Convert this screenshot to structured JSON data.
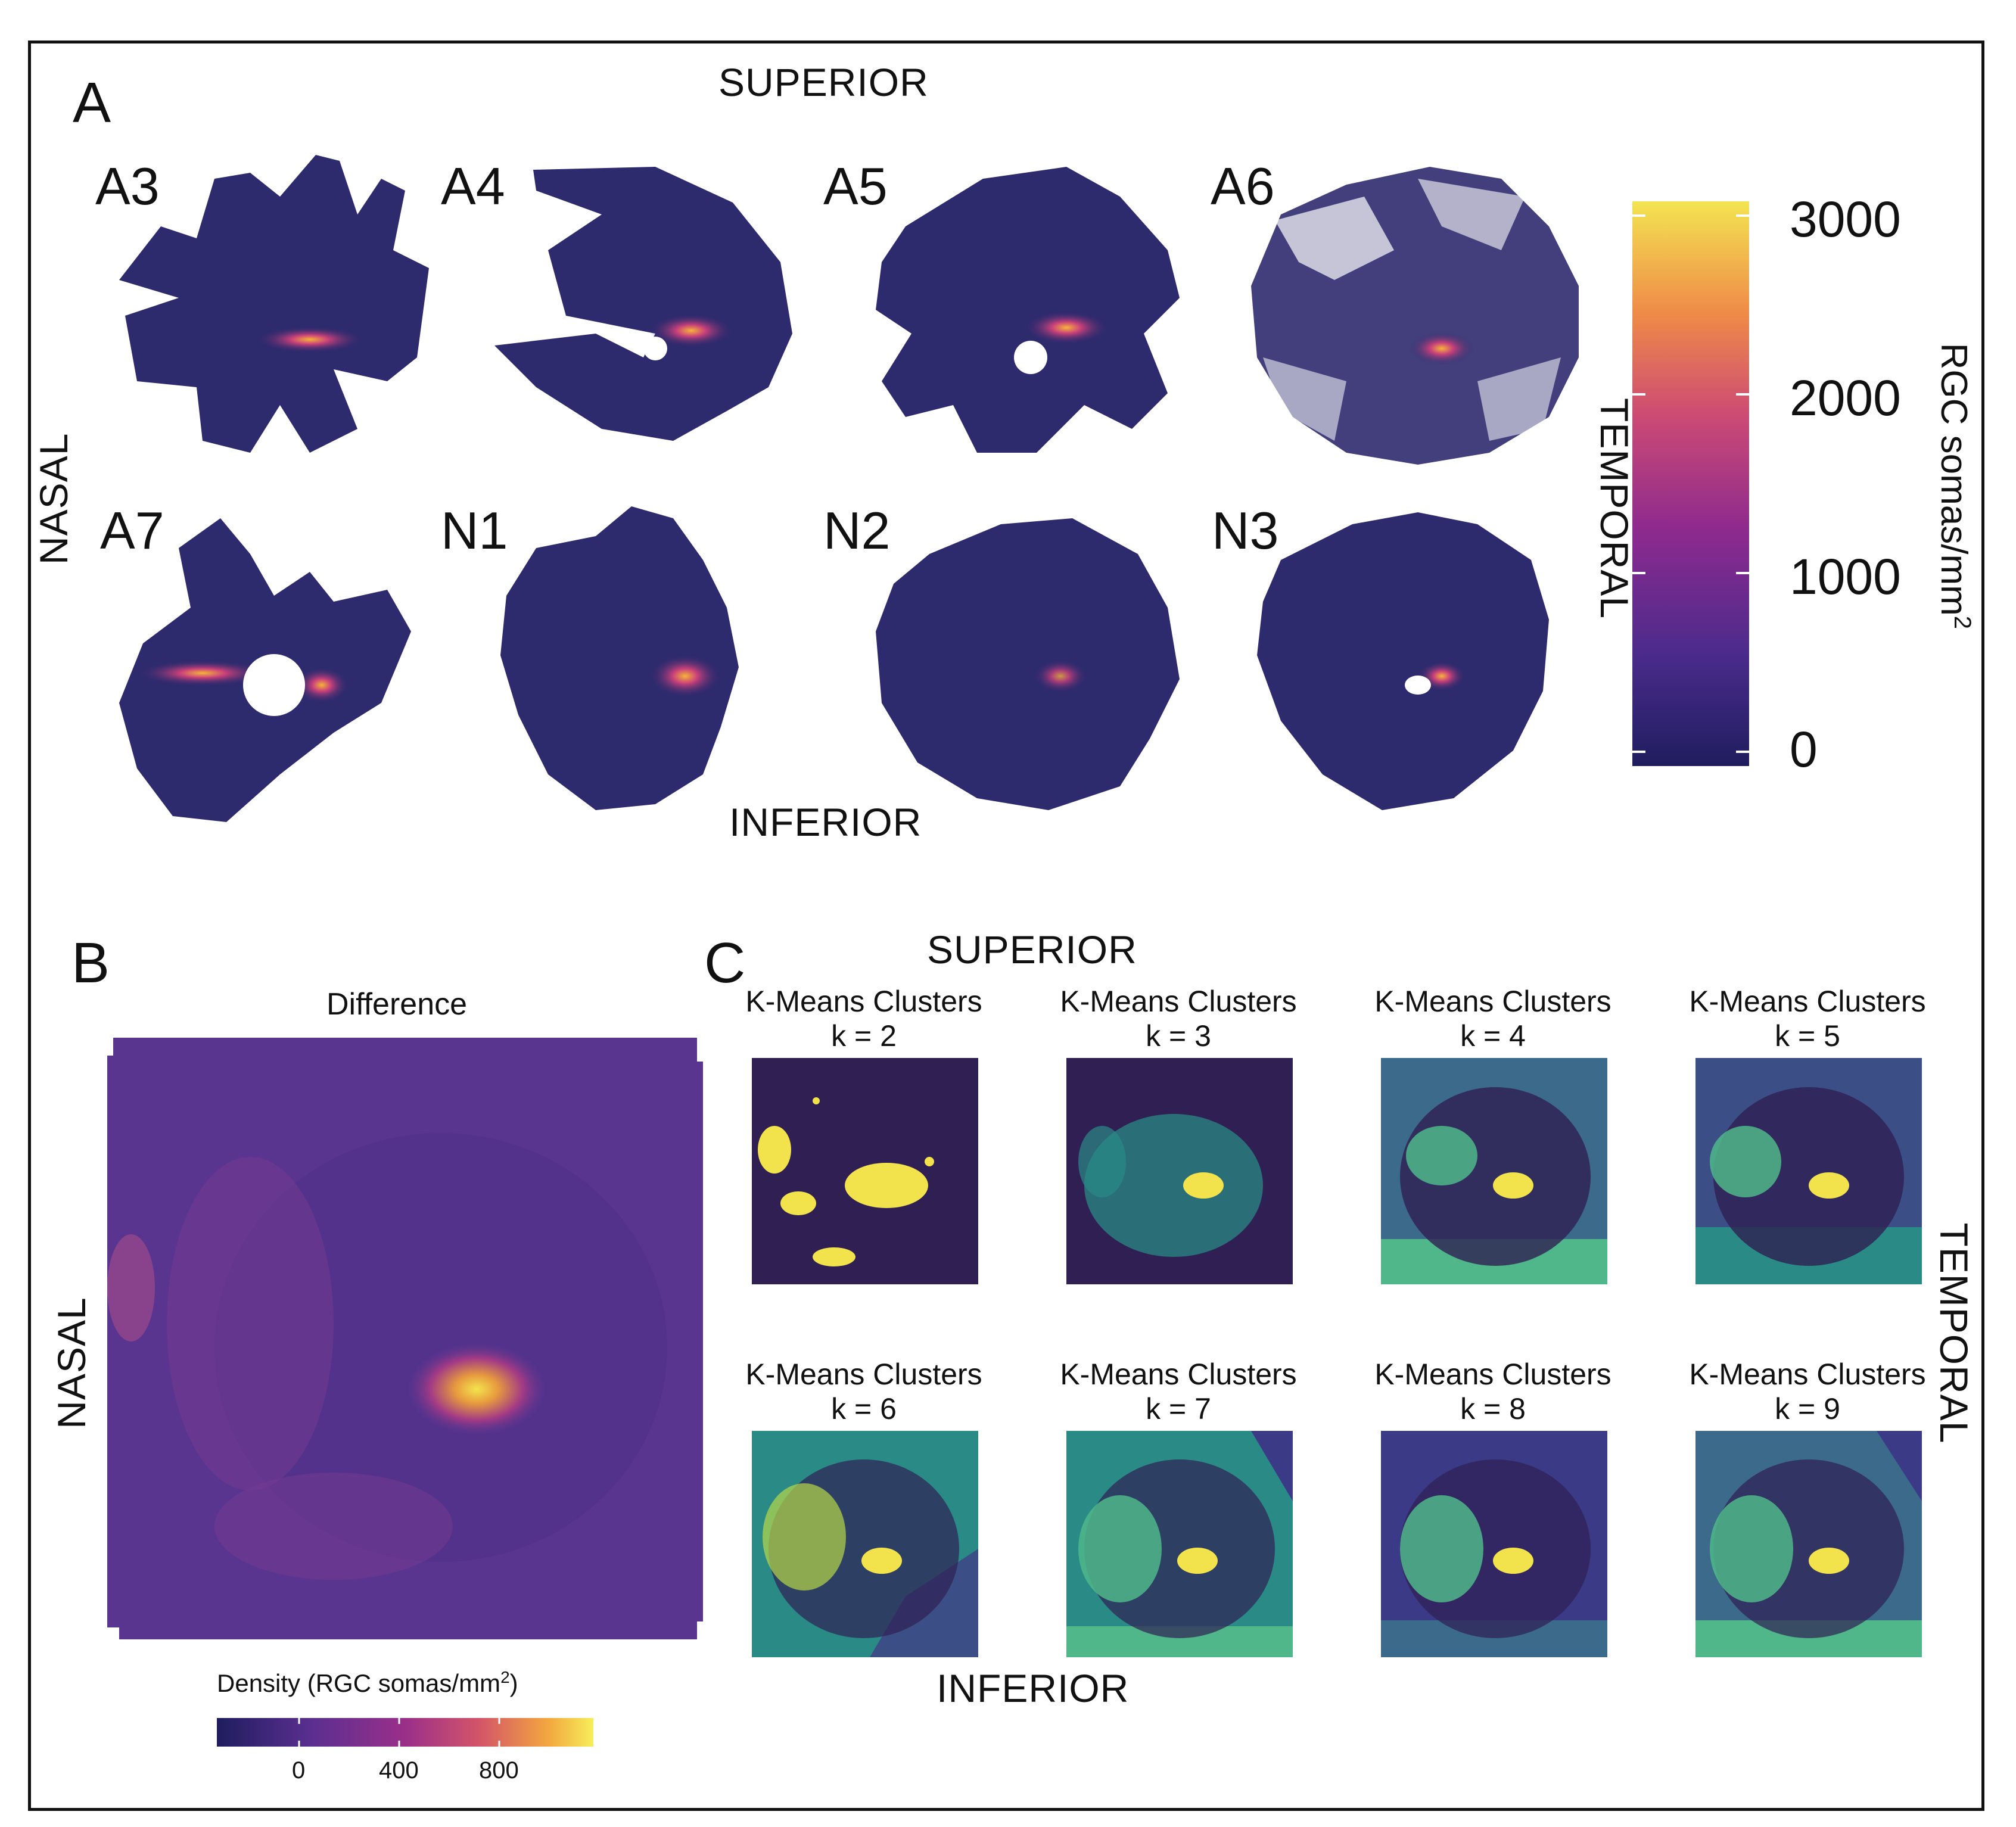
{
  "panelA": {
    "letter": "A",
    "orientation": {
      "superior": "SUPERIOR",
      "inferior": "INFERIOR",
      "nasal": "NASAL",
      "temporal": "TEMPORAL"
    },
    "retinas": [
      "A3",
      "A4",
      "A5",
      "A6",
      "A7",
      "N1",
      "N2",
      "N3"
    ],
    "colorbar": {
      "title": "RGC somas/mm",
      "superscript": "2",
      "ticks": [
        "3000",
        "2000",
        "1000",
        "0"
      ],
      "low_color": "#1f1d5e",
      "high_color": "#f3e451"
    }
  },
  "panelB": {
    "letter": "B",
    "title": "Difference",
    "orientation": {
      "nasal": "NASAL"
    },
    "legend": {
      "title": "Density (RGC somas/mm",
      "superscript": "2",
      "title_end": ")",
      "ticks": [
        "0",
        "400",
        "800"
      ]
    }
  },
  "panelC": {
    "letter": "C",
    "orientation": {
      "superior": "SUPERIOR",
      "inferior": "INFERIOR",
      "temporal": "TEMPORAL"
    },
    "panel_title": "K-Means Clusters",
    "k_labels": [
      "k = 2",
      "k = 3",
      "k = 4",
      "k = 5",
      "k = 6",
      "k = 7",
      "k = 8",
      "k = 9"
    ]
  },
  "colors": {
    "dark_purple": "#2c2255",
    "retina_blue": "#2e2a6e",
    "teal": "#2a8a86",
    "green": "#4fb78a",
    "yellow": "#f2e34c",
    "slate": "#3b6a8a"
  }
}
